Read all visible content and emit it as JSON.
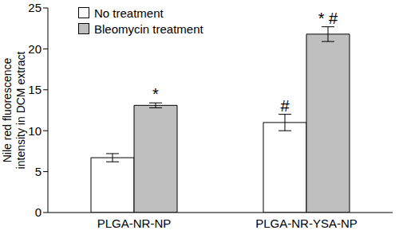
{
  "chart_data": {
    "type": "bar",
    "categories": [
      "PLGA-NR-NP",
      "PLGA-NR-YSA-NP"
    ],
    "ylabel": "Nile red fluorescence intensity in DCM extract",
    "ylim": [
      0,
      25
    ],
    "yticks": [
      0,
      5,
      10,
      15,
      20,
      25
    ],
    "legend": "upper left",
    "grid": false,
    "series": [
      {
        "name": "No treatment",
        "color": "#ffffff",
        "values": [
          6.7,
          11.0
        ],
        "errors": [
          0.5,
          1.0
        ],
        "annotations": [
          null,
          "#"
        ]
      },
      {
        "name": "Bleomycin treatment",
        "color": "#bfbfbf",
        "values": [
          13.1,
          21.8
        ],
        "errors": [
          0.3,
          0.9
        ],
        "annotations": [
          "*",
          "* #"
        ]
      }
    ]
  }
}
